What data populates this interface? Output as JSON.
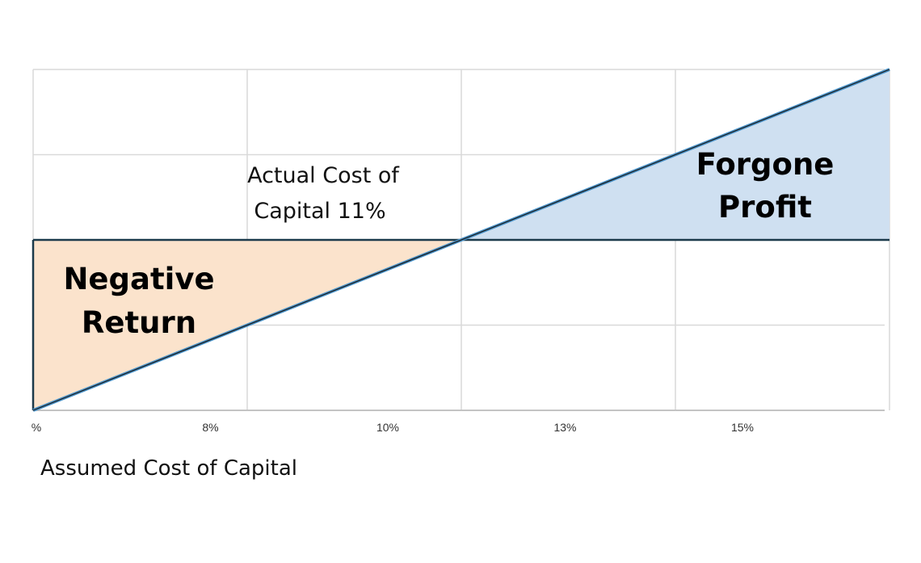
{
  "chart_data": {
    "type": "line",
    "title": "",
    "xlabel": "Assumed Cost of Capital",
    "ylabel": "",
    "x_ticks": [
      "%",
      "8%",
      "10%",
      "13%",
      "15%"
    ],
    "grid": true,
    "series": [
      {
        "x": [
          0,
          4.8
        ],
        "y": [
          0,
          4
        ]
      },
      {
        "x": [
          0,
          4.8
        ],
        "y": [
          2,
          2
        ]
      }
    ],
    "actual_cost_line": 2,
    "intersection_x": 2.4,
    "xlim": [
      0,
      4.8
    ],
    "ylim": [
      0,
      4
    ],
    "annotations": {
      "actual_cost": [
        "Actual Cost of",
        "Capital 11%"
      ],
      "negative_return": [
        "Negative",
        "Return"
      ],
      "forgone_profit": [
        "Forgone",
        "Profit"
      ]
    },
    "colors": {
      "negative_fill": "#fbe3cc",
      "profit_fill": "#cfe0f1",
      "assumed_line": "#4a93c9",
      "actual_line": "#1b3a4b",
      "grid": "#d9d9d9"
    }
  }
}
